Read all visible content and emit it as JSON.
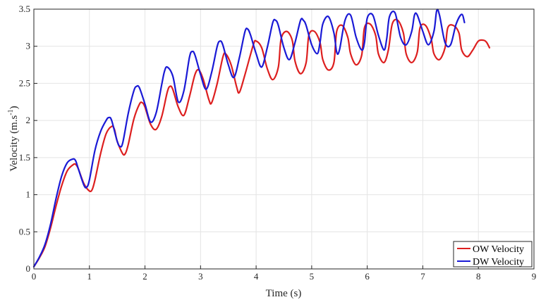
{
  "chart_data": {
    "type": "line",
    "xlabel": "Time (s)",
    "ylabel": "Velocity (m.s",
    "ylabel_sup": "-1",
    "ylabel_close": ")",
    "xlim": [
      0,
      9
    ],
    "ylim": [
      0,
      3.5
    ],
    "xticks": [
      0,
      1,
      2,
      3,
      4,
      5,
      6,
      7,
      8,
      9
    ],
    "yticks": [
      0,
      0.5,
      1,
      1.5,
      2,
      2.5,
      3,
      3.5
    ],
    "xtick_labels": [
      "0",
      "1",
      "2",
      "3",
      "4",
      "5",
      "6",
      "7",
      "8",
      "9"
    ],
    "ytick_labels": [
      "0",
      "0.5",
      "1",
      "1.5",
      "2",
      "2.5",
      "3",
      "3.5"
    ],
    "grid": true,
    "legend_position": "bottom-right",
    "series": [
      {
        "name": "OW Velocity",
        "color": "#dd1f1f",
        "x": [
          0,
          0.1,
          0.2,
          0.3,
          0.4,
          0.5,
          0.6,
          0.7,
          0.75,
          0.8,
          0.9,
          1.0,
          1.05,
          1.1,
          1.2,
          1.3,
          1.4,
          1.45,
          1.5,
          1.6,
          1.65,
          1.7,
          1.8,
          1.9,
          1.95,
          2.0,
          2.1,
          2.2,
          2.3,
          2.4,
          2.45,
          2.5,
          2.6,
          2.7,
          2.8,
          2.9,
          2.97,
          3.05,
          3.15,
          3.2,
          3.3,
          3.4,
          3.45,
          3.55,
          3.65,
          3.7,
          3.8,
          3.95,
          4.0,
          4.1,
          4.2,
          4.3,
          4.4,
          4.45,
          4.55,
          4.65,
          4.7,
          4.8,
          4.9,
          4.95,
          5.05,
          5.15,
          5.2,
          5.3,
          5.4,
          5.45,
          5.55,
          5.65,
          5.7,
          5.8,
          5.9,
          5.95,
          6.05,
          6.15,
          6.2,
          6.3,
          6.38,
          6.45,
          6.55,
          6.65,
          6.7,
          6.8,
          6.9,
          6.95,
          7.05,
          7.15,
          7.2,
          7.3,
          7.4,
          7.45,
          7.55,
          7.65,
          7.7,
          7.8,
          7.9,
          8.0,
          8.1,
          8.15,
          8.2
        ],
        "y": [
          0.03,
          0.15,
          0.3,
          0.55,
          0.85,
          1.12,
          1.32,
          1.4,
          1.41,
          1.35,
          1.15,
          1.05,
          1.07,
          1.2,
          1.55,
          1.82,
          1.92,
          1.88,
          1.72,
          1.55,
          1.56,
          1.68,
          2.02,
          2.22,
          2.24,
          2.18,
          1.95,
          1.88,
          2.05,
          2.38,
          2.46,
          2.42,
          2.18,
          2.07,
          2.32,
          2.62,
          2.68,
          2.55,
          2.28,
          2.24,
          2.5,
          2.85,
          2.9,
          2.75,
          2.45,
          2.38,
          2.62,
          3.02,
          3.07,
          2.98,
          2.7,
          2.55,
          2.72,
          3.1,
          3.2,
          3.08,
          2.8,
          2.63,
          2.78,
          3.15,
          3.2,
          3.05,
          2.82,
          2.68,
          2.78,
          3.2,
          3.28,
          3.12,
          2.9,
          2.75,
          2.88,
          3.25,
          3.3,
          3.15,
          2.9,
          2.78,
          2.95,
          3.3,
          3.35,
          3.18,
          2.9,
          2.78,
          2.92,
          3.25,
          3.28,
          3.1,
          2.9,
          2.82,
          2.98,
          3.25,
          3.28,
          3.18,
          2.95,
          2.86,
          2.95,
          3.07,
          3.08,
          3.05,
          2.98
        ]
      },
      {
        "name": "DW Velocity",
        "color": "#1a1ad6",
        "x": [
          0,
          0.1,
          0.2,
          0.3,
          0.4,
          0.5,
          0.6,
          0.7,
          0.75,
          0.8,
          0.9,
          0.95,
          1.0,
          1.1,
          1.2,
          1.3,
          1.35,
          1.4,
          1.5,
          1.55,
          1.6,
          1.7,
          1.8,
          1.85,
          1.9,
          2.0,
          2.1,
          2.2,
          2.3,
          2.35,
          2.4,
          2.5,
          2.6,
          2.7,
          2.8,
          2.85,
          2.9,
          3.0,
          3.1,
          3.2,
          3.3,
          3.35,
          3.4,
          3.5,
          3.6,
          3.7,
          3.8,
          3.85,
          3.9,
          4.0,
          4.1,
          4.2,
          4.3,
          4.35,
          4.4,
          4.5,
          4.6,
          4.7,
          4.8,
          4.85,
          4.9,
          5.0,
          5.1,
          5.15,
          5.2,
          5.3,
          5.4,
          5.45,
          5.5,
          5.6,
          5.7,
          5.8,
          5.9,
          5.95,
          6.0,
          6.1,
          6.2,
          6.3,
          6.35,
          6.4,
          6.5,
          6.6,
          6.7,
          6.8,
          6.85,
          6.9,
          7.0,
          7.1,
          7.2,
          7.25,
          7.3,
          7.4,
          7.5,
          7.6,
          7.7,
          7.75
        ],
        "y": [
          0.03,
          0.16,
          0.33,
          0.6,
          0.95,
          1.25,
          1.43,
          1.48,
          1.46,
          1.35,
          1.13,
          1.1,
          1.2,
          1.6,
          1.85,
          2.0,
          2.04,
          2.0,
          1.72,
          1.65,
          1.7,
          2.1,
          2.4,
          2.46,
          2.44,
          2.22,
          1.98,
          2.1,
          2.48,
          2.66,
          2.72,
          2.6,
          2.25,
          2.4,
          2.85,
          2.93,
          2.88,
          2.62,
          2.42,
          2.65,
          3.0,
          3.07,
          3.02,
          2.75,
          2.58,
          2.85,
          3.2,
          3.23,
          3.15,
          2.9,
          2.72,
          2.98,
          3.32,
          3.35,
          3.28,
          2.98,
          2.82,
          3.05,
          3.35,
          3.35,
          3.28,
          3.02,
          2.9,
          3.05,
          3.3,
          3.4,
          3.18,
          2.92,
          2.95,
          3.35,
          3.42,
          3.12,
          2.95,
          3.05,
          3.38,
          3.42,
          3.15,
          2.95,
          3.1,
          3.4,
          3.45,
          3.12,
          3.02,
          3.2,
          3.42,
          3.42,
          3.2,
          3.02,
          3.2,
          3.48,
          3.42,
          3.05,
          3.02,
          3.3,
          3.43,
          3.32
        ]
      }
    ]
  }
}
